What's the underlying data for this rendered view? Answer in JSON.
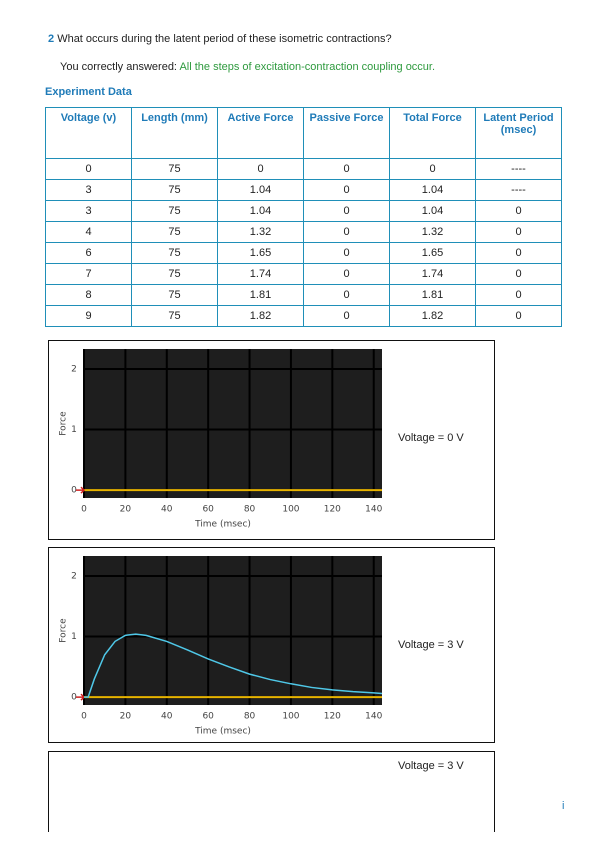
{
  "question": {
    "number": "2",
    "text": "What occurs during the latent period of these isometric contractions?",
    "answer_label": "You correctly answered:",
    "answer": "All the steps of excitation-contraction coupling occur."
  },
  "section_title": "Experiment Data",
  "table": {
    "headers": [
      "Voltage (v)",
      "Length (mm)",
      "Active Force",
      "Passive Force",
      "Total Force",
      "Latent Period (msec)"
    ],
    "rows": [
      [
        0,
        75,
        0,
        0,
        0,
        "----"
      ],
      [
        3,
        75,
        1.04,
        0,
        1.04,
        "----"
      ],
      [
        3,
        75,
        1.04,
        0,
        1.04,
        0
      ],
      [
        4,
        75,
        1.32,
        0,
        1.32,
        0
      ],
      [
        6,
        75,
        1.65,
        0,
        1.65,
        0
      ],
      [
        7,
        75,
        1.74,
        0,
        1.74,
        0
      ],
      [
        8,
        75,
        1.81,
        0,
        1.81,
        0
      ],
      [
        9,
        75,
        1.82,
        0,
        1.82,
        0
      ]
    ]
  },
  "panels": [
    {
      "label": "Voltage = 0 V",
      "chart": {
        "type": "line",
        "xlabel": "Time (msec)",
        "ylabel": "Force",
        "xlim": [
          0,
          144
        ],
        "ylim": [
          -0.13,
          2.33
        ],
        "xticks": [
          0,
          20,
          40,
          60,
          80,
          100,
          120,
          140
        ],
        "yticks": [
          0,
          1,
          2
        ],
        "grid": true,
        "reference_line": 0,
        "reference_color": "#e8b400"
      }
    },
    {
      "label": "Voltage = 3 V",
      "chart": {
        "type": "line",
        "xlabel": "Time (msec)",
        "ylabel": "Force",
        "xlim": [
          0,
          144
        ],
        "ylim": [
          -0.13,
          2.33
        ],
        "xticks": [
          0,
          20,
          40,
          60,
          80,
          100,
          120,
          140
        ],
        "yticks": [
          0,
          1,
          2
        ],
        "grid": true,
        "reference_line": 0,
        "reference_color": "#e8b400",
        "x": [
          0,
          2,
          5,
          10,
          15,
          20,
          25,
          30,
          40,
          50,
          60,
          70,
          80,
          90,
          100,
          110,
          120,
          130,
          140,
          144
        ],
        "series": [
          {
            "color": "#4fc8e8",
            "values": [
              0,
              0,
              0.3,
              0.7,
              0.92,
              1.02,
              1.04,
              1.02,
              0.92,
              0.78,
              0.63,
              0.5,
              0.38,
              0.29,
              0.22,
              0.16,
              0.12,
              0.09,
              0.07,
              0.06
            ]
          }
        ]
      }
    },
    {
      "label": "Voltage = 3 V"
    }
  ],
  "footer_icon": "i"
}
